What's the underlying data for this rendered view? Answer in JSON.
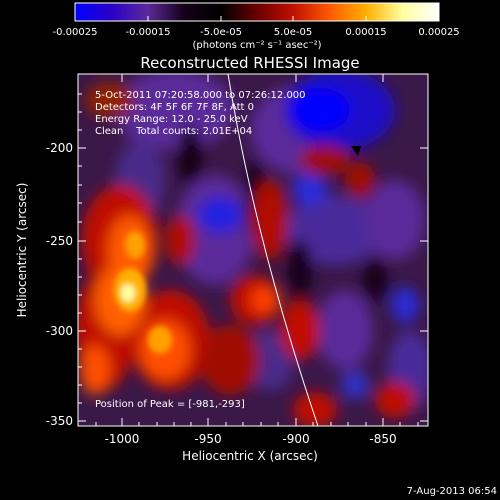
{
  "colorbar": {
    "ticks": [
      "-0.00025",
      "-0.00015",
      "-5.0e-05",
      "5.0e-05",
      "0.00015",
      "0.00025"
    ],
    "units": "(photons cm⁻² s⁻¹ asec⁻²)",
    "stops": [
      "#0000ff",
      "#2a00c8",
      "#5a2a9a",
      "#150018",
      "#000000",
      "#6a0000",
      "#c01000",
      "#ff5a00",
      "#ffb000",
      "#ffffa0",
      "#ffffff"
    ]
  },
  "plot": {
    "title": "Reconstructed RHESSI Image",
    "info": {
      "time": "5-Oct-2011 07:20:58.000 to 07:26:12.000",
      "detectors": "Detectors: 4F 5F 6F 7F 8F, Att 0",
      "energy": "Energy Range: 12.0 - 25.0 keV",
      "clean": "Clean    Total counts: 2.01E+04"
    },
    "peak": "Position of Peak = [-981,-293]",
    "x_axis": {
      "label": "Heliocentric X (arcsec)",
      "ticks": [
        "-1000",
        "-950",
        "-900",
        "-850"
      ]
    },
    "y_axis": {
      "label": "Heliocentric Y (arcsec)",
      "ticks": [
        "-200",
        "-250",
        "-300",
        "-350"
      ]
    }
  },
  "footer": {
    "timestamp": "7-Aug-2013 06:54"
  }
}
